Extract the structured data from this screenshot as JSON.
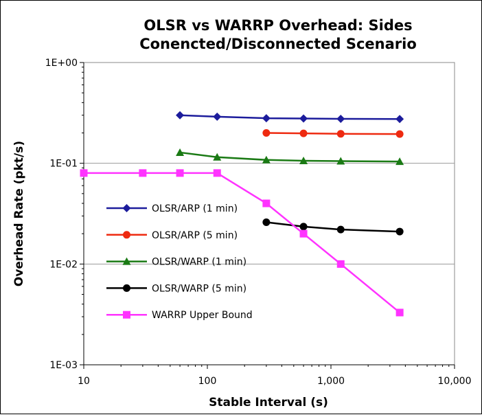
{
  "chart_data": {
    "type": "line",
    "title": "OLSR vs WARRP Overhead:  Sides Conencted/Disconnected Scenario",
    "title_lines": [
      "OLSR vs WARRP Overhead:  Sides",
      "Conencted/Disconnected Scenario"
    ],
    "xlabel": "Stable Interval (s)",
    "ylabel": "Overhead Rate (pkt/s)",
    "x_scale": "log",
    "y_scale": "log",
    "xlim": [
      10,
      10000
    ],
    "ylim": [
      0.001,
      1
    ],
    "x_ticks": [
      {
        "value": 10,
        "label": "10"
      },
      {
        "value": 100,
        "label": "100"
      },
      {
        "value": 1000,
        "label": "1,000"
      },
      {
        "value": 10000,
        "label": "10,000"
      }
    ],
    "y_ticks": [
      {
        "value": 1,
        "label": "1E+00"
      },
      {
        "value": 0.1,
        "label": "1E-01"
      },
      {
        "value": 0.01,
        "label": "1E-02"
      },
      {
        "value": 0.001,
        "label": "1E-03"
      }
    ],
    "grid": "horizontal",
    "legend_placement": "inside-left",
    "series": [
      {
        "name": "OLSR/ARP (1 min)",
        "color": "#1c1c9c",
        "marker": "diamond",
        "x": [
          60,
          120,
          300,
          600,
          1200,
          3600
        ],
        "y": [
          0.3,
          0.29,
          0.28,
          0.278,
          0.276,
          0.275
        ]
      },
      {
        "name": "OLSR/ARP (5 min)",
        "color": "#ee2a10",
        "marker": "circle",
        "x": [
          300,
          600,
          1200,
          3600
        ],
        "y": [
          0.2,
          0.198,
          0.196,
          0.195
        ]
      },
      {
        "name": "OLSR/WARP (1 min)",
        "color": "#1a7a14",
        "marker": "triangle",
        "x": [
          60,
          120,
          300,
          600,
          1200,
          3600
        ],
        "y": [
          0.128,
          0.115,
          0.108,
          0.106,
          0.105,
          0.104
        ]
      },
      {
        "name": "OLSR/WARP (5 min)",
        "color": "#000000",
        "marker": "circle",
        "x": [
          300,
          600,
          1200,
          3600
        ],
        "y": [
          0.026,
          0.0235,
          0.022,
          0.021
        ]
      },
      {
        "name": "WARRP Upper Bound",
        "color": "#ff33ff",
        "marker": "square",
        "x": [
          10,
          30,
          60,
          120,
          300,
          600,
          1200,
          3600
        ],
        "y": [
          0.08,
          0.08,
          0.08,
          0.08,
          0.04,
          0.02,
          0.01,
          0.0033
        ]
      }
    ]
  }
}
